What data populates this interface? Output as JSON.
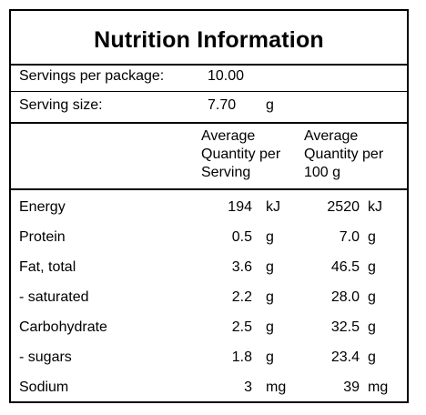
{
  "title": "Nutrition Information",
  "servings_per_package": {
    "label": "Servings per package:",
    "value": "10.00"
  },
  "serving_size": {
    "label": "Serving size:",
    "value": "7.70",
    "unit": "g"
  },
  "columns": {
    "per_serving": "Average Quantity per Serving",
    "per_100g": "Average Quantity per 100 g"
  },
  "rows": [
    {
      "name": "Energy",
      "serving": "194",
      "serving_unit": "kJ",
      "per100": "2520",
      "per100_unit": "kJ"
    },
    {
      "name": "Protein",
      "serving": "0.5",
      "serving_unit": "g",
      "per100": "7.0",
      "per100_unit": "g"
    },
    {
      "name": "Fat, total",
      "serving": "3.6",
      "serving_unit": "g",
      "per100": "46.5",
      "per100_unit": "g"
    },
    {
      "name": "- saturated",
      "serving": "2.2",
      "serving_unit": "g",
      "per100": "28.0",
      "per100_unit": "g"
    },
    {
      "name": "Carbohydrate",
      "serving": "2.5",
      "serving_unit": "g",
      "per100": "32.5",
      "per100_unit": "g"
    },
    {
      "name": "- sugars",
      "serving": "1.8",
      "serving_unit": "g",
      "per100": "23.4",
      "per100_unit": "g"
    },
    {
      "name": "Sodium",
      "serving": "3",
      "serving_unit": "mg",
      "per100": "39",
      "per100_unit": "mg"
    }
  ]
}
